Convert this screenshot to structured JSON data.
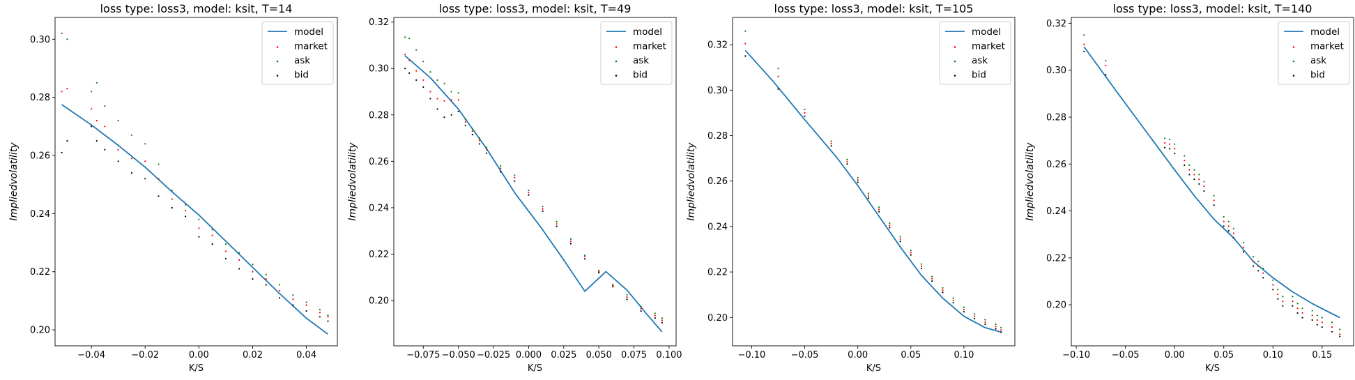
{
  "figure": {
    "background": "#ffffff"
  },
  "colors": {
    "model": "#1f77b4",
    "market": "#ff0000",
    "ask": "#008000",
    "bid": "#000000"
  },
  "chart_data": [
    {
      "type": "line",
      "title": "loss type: loss3, model: ksit, T=14",
      "xlabel": "K/S",
      "ylabel": "$Implied volatility$",
      "xlim": [
        -0.0535,
        0.0515
      ],
      "ylim": [
        0.1945,
        0.3075
      ],
      "xticks": [
        -0.04,
        -0.02,
        0.0,
        0.02,
        0.04
      ],
      "xtick_labels": [
        "−0.04",
        "−0.02",
        "0.00",
        "0.02",
        "0.04"
      ],
      "yticks": [
        0.2,
        0.22,
        0.24,
        0.26,
        0.28,
        0.3
      ],
      "ytick_labels": [
        "0.20",
        "0.22",
        "0.24",
        "0.26",
        "0.28",
        "0.30"
      ],
      "legend": {
        "position": "top-right",
        "entries": [
          "model",
          "market",
          "ask",
          "bid"
        ]
      },
      "model": {
        "x": [
          -0.051,
          -0.04,
          -0.03,
          -0.02,
          -0.01,
          0.0,
          0.01,
          0.02,
          0.03,
          0.04,
          0.048
        ],
        "y": [
          0.2775,
          0.2705,
          0.2635,
          0.256,
          0.2475,
          0.2395,
          0.2305,
          0.2215,
          0.2125,
          0.204,
          0.1985
        ]
      },
      "market": {
        "x": [
          -0.051,
          -0.049,
          -0.04,
          -0.038,
          -0.035,
          -0.03,
          -0.025,
          -0.02,
          -0.015,
          -0.01,
          -0.005,
          0.0,
          0.005,
          0.01,
          0.015,
          0.02,
          0.025,
          0.03,
          0.035,
          0.04,
          0.045,
          0.048
        ],
        "y": [
          0.282,
          0.283,
          0.276,
          0.272,
          0.27,
          0.262,
          0.259,
          0.258,
          0.252,
          0.245,
          0.241,
          0.235,
          0.2325,
          0.227,
          0.224,
          0.22,
          0.2175,
          0.2135,
          0.2105,
          0.2085,
          0.206,
          0.2045
        ]
      },
      "ask": {
        "x": [
          -0.051,
          -0.049,
          -0.04,
          -0.038,
          -0.035,
          -0.03,
          -0.025,
          -0.02,
          -0.015,
          -0.01,
          -0.005,
          0.0,
          0.005,
          0.01,
          0.015,
          0.02,
          0.025,
          0.03,
          0.035,
          0.04,
          0.045,
          0.048
        ],
        "y": [
          0.302,
          0.3,
          0.282,
          0.285,
          0.277,
          0.272,
          0.267,
          0.264,
          0.257,
          0.248,
          0.243,
          0.238,
          0.2345,
          0.2295,
          0.2265,
          0.2225,
          0.219,
          0.2155,
          0.212,
          0.2095,
          0.207,
          0.205
        ]
      },
      "bid": {
        "x": [
          -0.051,
          -0.049,
          -0.04,
          -0.038,
          -0.035,
          -0.03,
          -0.025,
          -0.02,
          -0.015,
          -0.01,
          -0.005,
          0.0,
          0.005,
          0.01,
          0.015,
          0.02,
          0.025,
          0.03,
          0.035,
          0.04,
          0.045,
          0.048
        ],
        "y": [
          0.261,
          0.265,
          0.27,
          0.265,
          0.262,
          0.258,
          0.254,
          0.252,
          0.246,
          0.242,
          0.239,
          0.232,
          0.2295,
          0.2245,
          0.221,
          0.2175,
          0.2155,
          0.211,
          0.2085,
          0.2065,
          0.2045,
          0.203
        ]
      }
    },
    {
      "type": "line",
      "title": "loss type: loss3, model: ksit, T=49",
      "xlabel": "K/S",
      "ylabel": "$Implied volatility$",
      "xlim": [
        -0.096,
        0.105
      ],
      "ylim": [
        0.1805,
        0.322
      ],
      "xticks": [
        -0.075,
        -0.05,
        -0.025,
        0.0,
        0.025,
        0.05,
        0.075,
        0.1
      ],
      "xtick_labels": [
        "−0.075",
        "−0.050",
        "−0.025",
        "0.000",
        "0.025",
        "0.050",
        "0.075",
        "0.100"
      ],
      "yticks": [
        0.2,
        0.22,
        0.24,
        0.26,
        0.28,
        0.3,
        0.32
      ],
      "ytick_labels": [
        "0.20",
        "0.22",
        "0.24",
        "0.26",
        "0.28",
        "0.30",
        "0.32"
      ],
      "legend": {
        "position": "top-right",
        "entries": [
          "model",
          "market",
          "ask",
          "bid"
        ]
      },
      "model": {
        "x": [
          -0.088,
          -0.07,
          -0.05,
          -0.03,
          -0.01,
          0.0,
          0.01,
          0.025,
          0.04,
          0.055,
          0.07,
          0.085,
          0.095
        ],
        "y": [
          0.3055,
          0.296,
          0.2825,
          0.2655,
          0.2465,
          0.2385,
          0.2305,
          0.2175,
          0.204,
          0.2125,
          0.2045,
          0.1935,
          0.1865
        ]
      },
      "market": {
        "x": [
          -0.088,
          -0.085,
          -0.08,
          -0.075,
          -0.07,
          -0.065,
          -0.06,
          -0.055,
          -0.05,
          -0.045,
          -0.04,
          -0.035,
          -0.03,
          -0.02,
          -0.01,
          0.0,
          0.01,
          0.02,
          0.03,
          0.04,
          0.05,
          0.06,
          0.07,
          0.08,
          0.09,
          0.095
        ],
        "y": [
          0.306,
          0.3035,
          0.299,
          0.295,
          0.29,
          0.287,
          0.286,
          0.2865,
          0.2865,
          0.277,
          0.273,
          0.269,
          0.265,
          0.257,
          0.253,
          0.2465,
          0.2395,
          0.233,
          0.2255,
          0.219,
          0.2125,
          0.2065,
          0.2015,
          0.1965,
          0.1935,
          0.1915
        ]
      },
      "ask": {
        "x": [
          -0.088,
          -0.085,
          -0.08,
          -0.075,
          -0.07,
          -0.065,
          -0.06,
          -0.055,
          -0.05,
          -0.045,
          -0.04,
          -0.035,
          -0.03,
          -0.02,
          -0.01,
          0.0,
          0.01,
          0.02,
          0.03,
          0.04,
          0.05,
          0.06,
          0.07,
          0.08,
          0.09,
          0.095
        ],
        "y": [
          0.3135,
          0.313,
          0.308,
          0.303,
          0.2985,
          0.295,
          0.2935,
          0.29,
          0.2895,
          0.278,
          0.274,
          0.27,
          0.266,
          0.258,
          0.254,
          0.2475,
          0.2405,
          0.234,
          0.2265,
          0.2195,
          0.213,
          0.207,
          0.2025,
          0.1975,
          0.1945,
          0.1925
        ]
      },
      "bid": {
        "x": [
          -0.088,
          -0.085,
          -0.08,
          -0.075,
          -0.07,
          -0.065,
          -0.06,
          -0.055,
          -0.05,
          -0.045,
          -0.04,
          -0.035,
          -0.03,
          -0.02,
          -0.01,
          0.0,
          0.01,
          0.02,
          0.03,
          0.04,
          0.05,
          0.06,
          0.07,
          0.08,
          0.09,
          0.095
        ],
        "y": [
          0.3,
          0.298,
          0.295,
          0.292,
          0.287,
          0.2825,
          0.279,
          0.28,
          0.2815,
          0.2755,
          0.2715,
          0.2675,
          0.2635,
          0.2555,
          0.2515,
          0.2455,
          0.2385,
          0.232,
          0.2245,
          0.218,
          0.212,
          0.206,
          0.2005,
          0.1955,
          0.1925,
          0.1905
        ]
      }
    },
    {
      "type": "line",
      "title": "loss type: loss3, model: ksit, T=105",
      "xlabel": "K/S",
      "ylabel": "$Implied volatility$",
      "xlim": [
        -0.118,
        0.148
      ],
      "ylim": [
        0.1875,
        0.332
      ],
      "xticks": [
        -0.1,
        -0.05,
        0.0,
        0.05,
        0.1
      ],
      "xtick_labels": [
        "−0.10",
        "−0.05",
        "0.00",
        "0.05",
        "0.10"
      ],
      "yticks": [
        0.2,
        0.22,
        0.24,
        0.26,
        0.28,
        0.3,
        0.32
      ],
      "ytick_labels": [
        "0.20",
        "0.22",
        "0.24",
        "0.26",
        "0.28",
        "0.30",
        "0.32"
      ],
      "legend": {
        "position": "top-right",
        "entries": [
          "model",
          "market",
          "ask",
          "bid"
        ]
      },
      "model": {
        "x": [
          -0.106,
          -0.08,
          -0.05,
          -0.02,
          0.0,
          0.02,
          0.04,
          0.06,
          0.08,
          0.1,
          0.12,
          0.135
        ],
        "y": [
          0.3175,
          0.304,
          0.287,
          0.2705,
          0.258,
          0.2445,
          0.231,
          0.2185,
          0.2085,
          0.2005,
          0.1955,
          0.1935
        ]
      },
      "market": {
        "x": [
          -0.106,
          -0.075,
          -0.05,
          -0.025,
          -0.01,
          0.0,
          0.01,
          0.02,
          0.03,
          0.04,
          0.05,
          0.06,
          0.07,
          0.08,
          0.09,
          0.1,
          0.11,
          0.12,
          0.13,
          0.135
        ],
        "y": [
          0.3205,
          0.306,
          0.29,
          0.2765,
          0.2685,
          0.2605,
          0.2535,
          0.2475,
          0.2405,
          0.2345,
          0.2285,
          0.2225,
          0.217,
          0.212,
          0.2075,
          0.2035,
          0.2005,
          0.198,
          0.196,
          0.1945
        ]
      },
      "ask": {
        "x": [
          -0.106,
          -0.075,
          -0.05,
          -0.025,
          -0.01,
          0.0,
          0.01,
          0.02,
          0.03,
          0.04,
          0.05,
          0.06,
          0.07,
          0.08,
          0.09,
          0.1,
          0.11,
          0.12,
          0.13,
          0.135
        ],
        "y": [
          0.326,
          0.3095,
          0.2915,
          0.2775,
          0.2695,
          0.2615,
          0.2545,
          0.2485,
          0.2415,
          0.2355,
          0.2295,
          0.2235,
          0.218,
          0.213,
          0.2085,
          0.2045,
          0.2015,
          0.199,
          0.197,
          0.1955
        ]
      },
      "bid": {
        "x": [
          -0.106,
          -0.075,
          -0.05,
          -0.025,
          -0.01,
          0.0,
          0.01,
          0.02,
          0.03,
          0.04,
          0.05,
          0.06,
          0.07,
          0.08,
          0.09,
          0.1,
          0.11,
          0.12,
          0.13,
          0.135
        ],
        "y": [
          0.315,
          0.3005,
          0.2885,
          0.2755,
          0.2675,
          0.2595,
          0.2525,
          0.2465,
          0.2395,
          0.2335,
          0.2275,
          0.2215,
          0.216,
          0.211,
          0.2065,
          0.2025,
          0.1995,
          0.197,
          0.195,
          0.1935
        ]
      }
    },
    {
      "type": "line",
      "title": "loss type: loss3, model: ksit, T=140",
      "xlabel": "K/S",
      "ylabel": "$Implied volatility$",
      "xlim": [
        -0.105,
        0.182
      ],
      "ylim": [
        0.1825,
        0.3225
      ],
      "xticks": [
        -0.1,
        -0.05,
        0.0,
        0.05,
        0.1,
        0.15
      ],
      "xtick_labels": [
        "−0.10",
        "−0.05",
        "0.00",
        "0.05",
        "0.10",
        "0.15"
      ],
      "yticks": [
        0.2,
        0.22,
        0.24,
        0.26,
        0.28,
        0.3,
        0.32
      ],
      "ytick_labels": [
        "0.20",
        "0.22",
        "0.24",
        "0.26",
        "0.28",
        "0.30",
        "0.32"
      ],
      "legend": {
        "position": "top-right",
        "entries": [
          "model",
          "market",
          "ask",
          "bid"
        ]
      },
      "model": {
        "x": [
          -0.092,
          -0.06,
          -0.03,
          0.0,
          0.02,
          0.04,
          0.06,
          0.08,
          0.1,
          0.12,
          0.14,
          0.168
        ],
        "y": [
          0.31,
          0.2915,
          0.2745,
          0.2575,
          0.2465,
          0.2365,
          0.2285,
          0.2185,
          0.2115,
          0.2055,
          0.2005,
          0.1945
        ]
      },
      "market": {
        "x": [
          -0.092,
          -0.07,
          -0.01,
          -0.005,
          0.0,
          0.01,
          0.015,
          0.02,
          0.025,
          0.03,
          0.04,
          0.05,
          0.055,
          0.06,
          0.07,
          0.08,
          0.085,
          0.09,
          0.1,
          0.105,
          0.11,
          0.12,
          0.125,
          0.13,
          0.14,
          0.145,
          0.15,
          0.16,
          0.168
        ],
        "y": [
          0.311,
          0.302,
          0.269,
          0.2685,
          0.2665,
          0.2615,
          0.2575,
          0.2555,
          0.2535,
          0.2505,
          0.2445,
          0.2355,
          0.2335,
          0.2305,
          0.2245,
          0.2185,
          0.2165,
          0.2135,
          0.2085,
          0.2045,
          0.2015,
          0.2015,
          0.1985,
          0.1965,
          0.1955,
          0.1935,
          0.1925,
          0.1905,
          0.1875
        ]
      },
      "ask": {
        "x": [
          -0.092,
          -0.07,
          -0.01,
          -0.005,
          0.0,
          0.01,
          0.015,
          0.02,
          0.025,
          0.03,
          0.04,
          0.05,
          0.055,
          0.06,
          0.07,
          0.08,
          0.085,
          0.09,
          0.1,
          0.105,
          0.11,
          0.12,
          0.125,
          0.13,
          0.14,
          0.145,
          0.15,
          0.16,
          0.168
        ],
        "y": [
          0.315,
          0.304,
          0.271,
          0.2705,
          0.2685,
          0.2635,
          0.2595,
          0.2575,
          0.2555,
          0.2525,
          0.2465,
          0.2375,
          0.2355,
          0.2325,
          0.2265,
          0.2205,
          0.2185,
          0.2155,
          0.2105,
          0.2065,
          0.2035,
          0.2035,
          0.2005,
          0.1985,
          0.1975,
          0.1955,
          0.1945,
          0.1925,
          0.1895
        ]
      },
      "bid": {
        "x": [
          -0.092,
          -0.07,
          -0.01,
          -0.005,
          0.0,
          0.01,
          0.015,
          0.02,
          0.025,
          0.03,
          0.04,
          0.05,
          0.055,
          0.06,
          0.07,
          0.08,
          0.085,
          0.09,
          0.1,
          0.105,
          0.11,
          0.12,
          0.125,
          0.13,
          0.14,
          0.145,
          0.15,
          0.16,
          0.168
        ],
        "y": [
          0.308,
          0.298,
          0.267,
          0.2665,
          0.2645,
          0.2595,
          0.2555,
          0.2535,
          0.2515,
          0.2485,
          0.2425,
          0.2335,
          0.2315,
          0.2285,
          0.2225,
          0.2165,
          0.2145,
          0.2115,
          0.2065,
          0.2025,
          0.1995,
          0.1995,
          0.1965,
          0.1945,
          0.1935,
          0.1915,
          0.1905,
          0.1885,
          0.1865
        ]
      }
    }
  ]
}
